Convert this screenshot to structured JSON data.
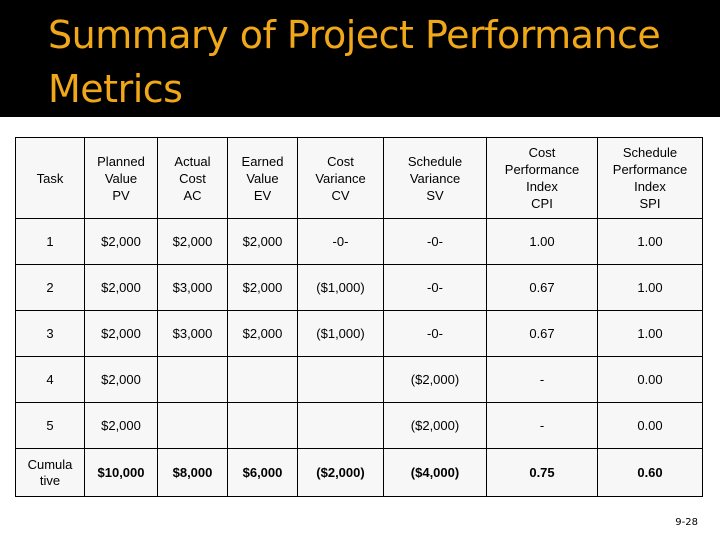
{
  "slide": {
    "title_line1": "Summary of Project Performance",
    "title_line2": "Metrics",
    "page_number": "9-28"
  },
  "table": {
    "headers": [
      {
        "lines": [
          "Task"
        ]
      },
      {
        "lines": [
          "Planned",
          "Value",
          "PV"
        ]
      },
      {
        "lines": [
          "Actual",
          "Cost",
          "AC"
        ]
      },
      {
        "lines": [
          "Earned",
          "Value",
          "EV"
        ]
      },
      {
        "lines": [
          "Cost",
          "Variance",
          "CV"
        ]
      },
      {
        "lines": [
          "Schedule",
          "Variance",
          "SV"
        ]
      },
      {
        "lines": [
          "Cost",
          "Performance",
          "Index",
          "CPI"
        ]
      },
      {
        "lines": [
          "Schedule",
          "Performance",
          "Index",
          "SPI"
        ]
      }
    ],
    "rows": [
      [
        "1",
        "$2,000",
        "$2,000",
        "$2,000",
        "-0-",
        "-0-",
        "1.00",
        "1.00"
      ],
      [
        "2",
        "$2,000",
        "$3,000",
        "$2,000",
        "($1,000)",
        "-0-",
        "0.67",
        "1.00"
      ],
      [
        "3",
        "$2,000",
        "$3,000",
        "$2,000",
        "($1,000)",
        "-0-",
        "0.67",
        "1.00"
      ],
      [
        "4",
        "$2,000",
        "",
        "",
        "",
        "($2,000)",
        "-",
        "0.00"
      ],
      [
        "5",
        "$2,000",
        "",
        "",
        "",
        "($2,000)",
        "-",
        "0.00"
      ]
    ],
    "total": {
      "task_line1": "Cumula",
      "task_line2": "tive",
      "values": [
        "$10,000",
        "$8,000",
        "$6,000",
        "($2,000)",
        "($4,000)",
        "0.75",
        "0.60"
      ]
    }
  }
}
